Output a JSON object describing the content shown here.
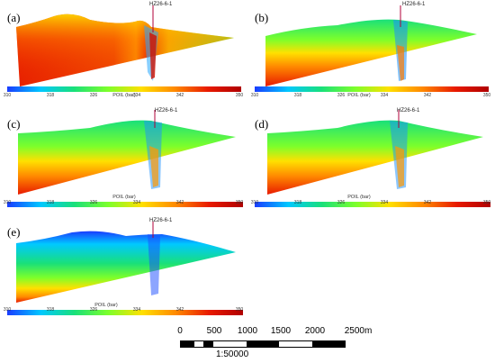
{
  "panels": [
    {
      "id": "a",
      "label": "(a)",
      "well": "HZ26-6-1",
      "cbar_title": "POIL (bar)"
    },
    {
      "id": "b",
      "label": "(b)",
      "well": "HZ26-6-1",
      "cbar_title": "POIL (bar)"
    },
    {
      "id": "c",
      "label": "(c)",
      "well": "HZ26-6-1",
      "cbar_title": "POIL (bar)"
    },
    {
      "id": "d",
      "label": "(d)",
      "well": "HZ26-6-1",
      "cbar_title": "POIL (bar)"
    },
    {
      "id": "e",
      "label": "(e)",
      "well": "HZ26-6-1",
      "cbar_title": "POIL (bar)"
    }
  ],
  "colorbar": {
    "ticks": [
      "310",
      "318",
      "326",
      "334",
      "342",
      "350"
    ],
    "colors": [
      "#1a3cff",
      "#00c8ff",
      "#19e07a",
      "#7cff2b",
      "#ffe000",
      "#ff8a00",
      "#e81a00",
      "#b00000"
    ]
  },
  "scale_bar": {
    "ticks": [
      "0",
      "500",
      "1000",
      "1500",
      "2000",
      "2500m"
    ],
    "ratio": "1:50000"
  }
}
